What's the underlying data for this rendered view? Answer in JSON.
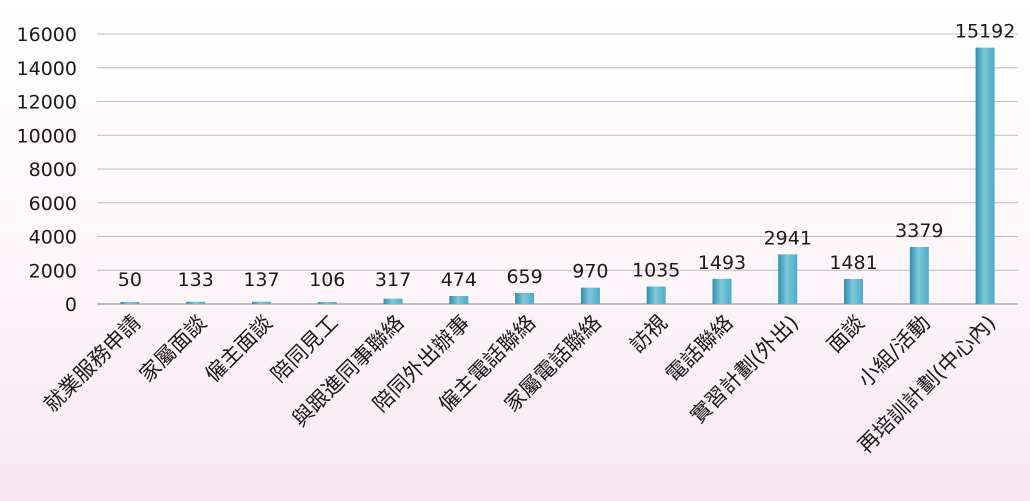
{
  "chart_data": {
    "type": "bar",
    "title": "",
    "xlabel": "",
    "ylabel": "",
    "categories": [
      "就業服務申請",
      "家屬面談",
      "僱主面談",
      "陪同見工",
      "與跟進同事聯絡",
      "陪同外出辦事",
      "僱主電話聯絡",
      "家屬電話聯絡",
      "訪視",
      "電話聯絡",
      "實習計劃(外出)",
      "面談",
      "小組/活動",
      "再培訓計劃(中心內)"
    ],
    "values": [
      50,
      133,
      137,
      106,
      317,
      474,
      659,
      970,
      1035,
      1493,
      2941,
      1481,
      3379,
      15192
    ],
    "ylim": [
      0,
      16000
    ],
    "yticks": [
      0,
      2000,
      4000,
      6000,
      8000,
      10000,
      12000,
      14000,
      16000
    ],
    "grid": true,
    "legend": "none",
    "data_labels": true,
    "colors": {
      "bar": "#4bacc6",
      "bar_light": "#7fc7da",
      "bar_dark": "#2e8fab"
    }
  }
}
